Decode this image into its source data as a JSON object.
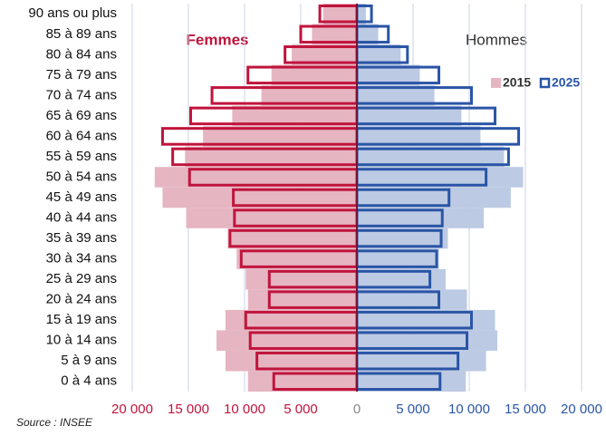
{
  "chart_data": {
    "type": "pyramid",
    "categories": [
      "90 ans ou plus",
      "85 à 89 ans",
      "80 à 84 ans",
      "75 à 79 ans",
      "70 à 74 ans",
      "65 à 69 ans",
      "60 à 64 ans",
      "55 à 59 ans",
      "50 à 54 ans",
      "45 à 49 ans",
      "40 à 44 ans",
      "35 à 39 ans",
      "30 à 34 ans",
      "25 à 29 ans",
      "20 à 24 ans",
      "15 à 19 ans",
      "10 à 14 ans",
      "5 à 9 ans",
      "0 à 4 ans"
    ],
    "femmes": {
      "label": "Femmes",
      "fill": "#e6b5c2",
      "stroke": "#c0143c",
      "tick_color": "#c0143c",
      "xlim": [
        0,
        20000
      ],
      "xticks": [
        {
          "value": 20000,
          "label": "20 000"
        },
        {
          "value": 15000,
          "label": "15 000"
        },
        {
          "value": 10000,
          "label": "10 000"
        },
        {
          "value": 5000,
          "label": "5 000"
        }
      ]
    },
    "hommes": {
      "label": "Hommes",
      "fill": "#bccae3",
      "stroke": "#2a55a6",
      "tick_color": "#2a55a6",
      "xlim": [
        0,
        20000
      ],
      "xticks": [
        {
          "value": 5000,
          "label": "5 000"
        },
        {
          "value": 10000,
          "label": "10 000"
        },
        {
          "value": 15000,
          "label": "15 000"
        },
        {
          "value": 20000,
          "label": "20 000"
        }
      ]
    },
    "zero_tick": 0,
    "series": [
      {
        "name": "2015",
        "style": "fill",
        "femmes": [
          3000,
          4000,
          5800,
          7600,
          8500,
          11100,
          13700,
          15300,
          18000,
          17300,
          15200,
          11500,
          10700,
          9900,
          9700,
          11700,
          12500,
          11700,
          9700
        ],
        "hommes": [
          800,
          1900,
          3900,
          5600,
          6900,
          9300,
          11000,
          13100,
          14800,
          13700,
          11300,
          8100,
          7300,
          7900,
          9800,
          12300,
          12500,
          11500,
          9700
        ]
      },
      {
        "name": "2025",
        "style": "outline",
        "femmes": [
          3300,
          5000,
          6400,
          9700,
          12900,
          14800,
          17300,
          16400,
          14900,
          11000,
          10900,
          11300,
          10300,
          7800,
          7800,
          9900,
          9500,
          8900,
          7400
        ],
        "hommes": [
          1300,
          2800,
          4500,
          7300,
          10200,
          12300,
          14400,
          13500,
          11500,
          8200,
          7600,
          7500,
          7100,
          6500,
          7300,
          10200,
          9800,
          9000,
          7400
        ]
      }
    ],
    "grid": true,
    "source": "Source : INSEE"
  }
}
